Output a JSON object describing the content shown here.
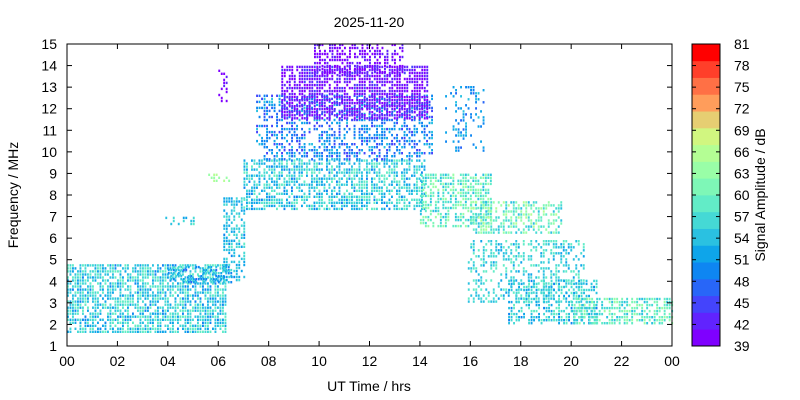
{
  "chart_data": {
    "type": "heatmap",
    "title": "2025-11-20",
    "xlabel": "UT Time / hrs",
    "ylabel": "Frequency / MHz",
    "xlim": [
      0,
      24
    ],
    "ylim": [
      1,
      15
    ],
    "x_ticks": [
      "00",
      "02",
      "04",
      "06",
      "08",
      "10",
      "12",
      "14",
      "16",
      "18",
      "20",
      "22",
      "00"
    ],
    "y_ticks": [
      "1",
      "2",
      "3",
      "4",
      "5",
      "6",
      "7",
      "8",
      "9",
      "10",
      "11",
      "12",
      "13",
      "14",
      "15"
    ],
    "colorbar": {
      "label": "Signal Amplitude / dB",
      "range": [
        39,
        81
      ],
      "ticks": [
        "39",
        "42",
        "45",
        "48",
        "51",
        "54",
        "57",
        "60",
        "63",
        "66",
        "69",
        "72",
        "75",
        "78",
        "81"
      ],
      "colors": [
        "#7f00ff",
        "#6123fe",
        "#4444fc",
        "#2866f8",
        "#0e86f2",
        "#0ea5ea",
        "#2ac1e1",
        "#45d9d5",
        "#62ecc7",
        "#7ef7b7",
        "#99fea7",
        "#b4fe94",
        "#d1f680",
        "#e6ce72",
        "#ff9d5b",
        "#ff7045",
        "#ff3f2a",
        "#ff0000"
      ]
    },
    "regions": [
      {
        "t": [
          0.0,
          6.3
        ],
        "f": [
          1.6,
          4.8
        ],
        "amp": [
          50,
          60
        ],
        "density": 0.72
      },
      {
        "t": [
          4.0,
          6.5
        ],
        "f": [
          3.9,
          4.6
        ],
        "amp": [
          48,
          56
        ],
        "density": 0.5
      },
      {
        "t": [
          6.2,
          7.0
        ],
        "f": [
          4.0,
          7.8
        ],
        "amp": [
          50,
          58
        ],
        "density": 0.55
      },
      {
        "t": [
          7.0,
          14.2
        ],
        "f": [
          7.3,
          9.6
        ],
        "amp": [
          50,
          60
        ],
        "density": 0.65
      },
      {
        "t": [
          7.5,
          14.5
        ],
        "f": [
          9.6,
          12.6
        ],
        "amp": [
          44,
          54
        ],
        "density": 0.5
      },
      {
        "t": [
          8.5,
          14.3
        ],
        "f": [
          11.5,
          14.0
        ],
        "amp": [
          39,
          44
        ],
        "density": 0.75
      },
      {
        "t": [
          9.8,
          13.3
        ],
        "f": [
          13.5,
          15.0
        ],
        "amp": [
          39,
          43
        ],
        "density": 0.55
      },
      {
        "t": [
          14.0,
          16.8
        ],
        "f": [
          6.5,
          9.0
        ],
        "amp": [
          54,
          64
        ],
        "density": 0.6
      },
      {
        "t": [
          16.0,
          19.6
        ],
        "f": [
          6.2,
          7.6
        ],
        "amp": [
          54,
          66
        ],
        "density": 0.55
      },
      {
        "t": [
          15.9,
          20.5
        ],
        "f": [
          3.0,
          5.8
        ],
        "amp": [
          52,
          60
        ],
        "density": 0.4
      },
      {
        "t": [
          17.5,
          21.0
        ],
        "f": [
          2.0,
          4.0
        ],
        "amp": [
          50,
          60
        ],
        "density": 0.45
      },
      {
        "t": [
          20.0,
          24.0
        ],
        "f": [
          2.0,
          3.2
        ],
        "amp": [
          54,
          64
        ],
        "density": 0.65
      },
      {
        "t": [
          6.0,
          6.3
        ],
        "f": [
          12.3,
          13.8
        ],
        "amp": [
          39,
          42
        ],
        "density": 0.3
      },
      {
        "t": [
          5.6,
          6.4
        ],
        "f": [
          8.6,
          8.9
        ],
        "amp": [
          63,
          68
        ],
        "density": 0.35
      },
      {
        "t": [
          3.8,
          5.0
        ],
        "f": [
          6.6,
          6.9
        ],
        "amp": [
          52,
          58
        ],
        "density": 0.35
      },
      {
        "t": [
          15.0,
          16.5
        ],
        "f": [
          10.0,
          13.0
        ],
        "amp": [
          48,
          54
        ],
        "density": 0.25
      }
    ]
  }
}
